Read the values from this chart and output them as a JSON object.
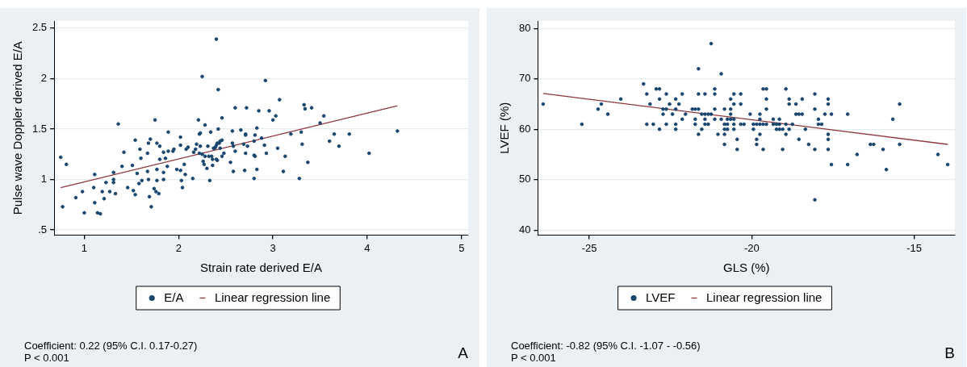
{
  "chart_data": [
    {
      "type": "scatter",
      "xlabel": "Strain rate derived E/A",
      "ylabel": "Pulse wave Doppler derived E/A",
      "xlim": [
        0.68,
        5.07
      ],
      "xticks": [
        1,
        2,
        3,
        4,
        5
      ],
      "ylim": [
        0.45,
        2.57
      ],
      "yticks": [
        {
          "value": 0.5,
          "label": ".5"
        },
        1,
        1.5,
        2,
        2.5
      ],
      "grid": "y",
      "legend": "bottom",
      "marker": "circle",
      "annotations": [
        "Coefficient: 0.22 (95% C.I. 0.17-0.27)",
        "P < 0.001",
        "A"
      ],
      "series": [
        {
          "name": "E/A",
          "type": "scatter",
          "color": "#1a476f",
          "x": [
            0.75,
            0.77,
            0.81,
            0.91,
            0.98,
            1.0,
            1.1,
            1.11,
            1.11,
            1.14,
            1.17,
            1.19,
            1.21,
            1.23,
            1.27,
            1.31,
            1.31,
            1.31,
            1.33,
            1.36,
            1.4,
            1.42,
            1.46,
            1.51,
            1.52,
            1.54,
            1.54,
            1.56,
            1.58,
            1.59,
            1.6,
            1.61,
            1.67,
            1.67,
            1.68,
            1.68,
            1.69,
            1.7,
            1.71,
            1.74,
            1.75,
            1.76,
            1.77,
            1.77,
            1.77,
            1.79,
            1.8,
            1.8,
            1.84,
            1.84,
            1.84,
            1.86,
            1.88,
            1.89,
            1.89,
            1.94,
            1.95,
            1.98,
            2.02,
            2.02,
            2.02,
            2.03,
            2.04,
            2.06,
            2.07,
            2.08,
            2.1,
            2.15,
            2.16,
            2.18,
            2.19,
            2.21,
            2.22,
            2.23,
            2.23,
            2.22,
            2.25,
            2.25,
            2.26,
            2.27,
            2.28,
            2.28,
            2.3,
            2.31,
            2.32,
            2.33,
            2.34,
            2.35,
            2.36,
            2.36,
            2.37,
            2.38,
            2.39,
            2.4,
            2.4,
            2.4,
            2.41,
            2.41,
            2.42,
            2.42,
            2.43,
            2.44,
            2.44,
            2.46,
            2.46,
            2.46,
            2.48,
            2.55,
            2.57,
            2.57,
            2.58,
            2.58,
            2.6,
            2.6,
            2.66,
            2.69,
            2.7,
            2.71,
            2.71,
            2.72,
            2.71,
            2.73,
            2.8,
            2.8,
            2.8,
            2.81,
            2.81,
            2.83,
            2.83,
            2.85,
            2.88,
            2.91,
            2.92,
            2.93,
            2.96,
            3.0,
            3.03,
            3.05,
            3.07,
            3.11,
            3.13,
            3.19,
            3.28,
            3.3,
            3.31,
            3.33,
            3.34,
            3.37,
            3.41,
            3.5,
            3.54,
            3.6,
            3.65,
            3.7,
            3.81,
            4.02,
            4.32
          ],
          "values": [
            1.22,
            0.73,
            1.15,
            0.82,
            0.88,
            0.67,
            0.92,
            1.05,
            0.77,
            0.67,
            0.66,
            0.88,
            0.81,
            0.97,
            0.88,
            1.07,
            1.0,
            0.97,
            0.86,
            1.55,
            1.13,
            1.27,
            0.92,
            1.14,
            0.89,
            1.39,
            0.85,
            1.06,
            0.96,
            1.3,
            1.21,
            0.99,
            1.08,
            1.26,
            1.0,
            1.36,
            0.83,
            1.4,
            0.73,
            0.91,
            1.59,
            0.88,
            1.1,
            1.36,
            0.99,
            0.86,
            1.2,
            1.33,
            1.27,
            1.07,
            1.0,
            1.21,
            1.13,
            1.47,
            1.28,
            1.28,
            1.3,
            1.1,
            1.42,
            1.34,
            1.09,
            0.99,
            0.92,
            1.15,
            1.05,
            1.3,
            1.32,
            1.01,
            1.27,
            1.3,
            1.35,
            1.59,
            1.45,
            1.46,
            1.33,
            1.26,
            2.02,
            1.25,
            1.18,
            1.15,
            1.23,
            1.54,
            1.11,
            1.33,
            1.23,
            0.99,
            1.47,
            1.23,
            1.14,
            1.2,
            1.31,
            1.31,
            1.32,
            2.39,
            1.34,
            1.2,
            1.36,
            1.19,
            1.89,
            1.5,
            1.36,
            1.31,
            1.38,
            1.39,
            1.61,
            1.23,
            1.26,
            1.17,
            1.48,
            1.36,
            1.33,
            1.08,
            1.71,
            1.28,
            1.49,
            1.35,
            1.09,
            1.44,
            1.45,
            1.71,
            1.26,
            1.33,
            1.38,
            1.24,
            1.01,
            1.44,
            1.23,
            1.51,
            1.1,
            1.68,
            1.41,
            1.34,
            1.98,
            1.26,
            1.68,
            1.59,
            1.63,
            1.31,
            1.79,
            1.08,
            1.23,
            1.45,
            1.01,
            1.47,
            1.35,
            1.74,
            1.7,
            1.17,
            1.71,
            1.56,
            1.63,
            1.38,
            1.45,
            1.33,
            1.45,
            1.26,
            1.48
          ]
        },
        {
          "name": "Linear regression line",
          "type": "line",
          "color": "#90353b",
          "marker": "none",
          "x": [
            0.75,
            4.32
          ],
          "values": [
            0.92,
            1.73
          ]
        }
      ]
    },
    {
      "type": "scatter",
      "xlabel": "GLS (%)",
      "ylabel": "LVEF (%)",
      "xlim": [
        -26.58,
        -13.75
      ],
      "xticks": [
        -25,
        -20,
        -15
      ],
      "ylim": [
        39,
        81.5
      ],
      "yticks": [
        40,
        50,
        60,
        70,
        80
      ],
      "grid": "y",
      "legend": "bottom",
      "marker": "circle",
      "annotations": [
        "Coefficient: -0.82 (95% C.I. -1.07 - -0.56)",
        "P < 0.001",
        "B"
      ],
      "series": [
        {
          "name": "LVEF",
          "type": "scatter",
          "color": "#1a476f",
          "x": [
            -26.42,
            -25.23,
            -24.73,
            -24.63,
            -24.43,
            -24.03,
            -23.33,
            -23.23,
            -23.23,
            -23.13,
            -23.03,
            -22.94,
            -22.84,
            -22.84,
            -22.84,
            -22.73,
            -22.73,
            -22.63,
            -22.63,
            -22.63,
            -22.53,
            -22.44,
            -22.34,
            -22.34,
            -22.34,
            -22.34,
            -22.24,
            -22.14,
            -22.14,
            -22.04,
            -21.83,
            -21.74,
            -21.74,
            -21.74,
            -21.64,
            -21.64,
            -21.64,
            -21.64,
            -21.54,
            -21.54,
            -21.44,
            -21.44,
            -21.44,
            -21.44,
            -21.34,
            -21.34,
            -21.25,
            -21.25,
            -21.14,
            -21.14,
            -21.14,
            -21.14,
            -21.04,
            -20.94,
            -20.94,
            -20.84,
            -20.84,
            -20.84,
            -20.84,
            -20.84,
            -20.75,
            -20.75,
            -20.75,
            -20.65,
            -20.65,
            -20.65,
            -20.65,
            -20.55,
            -20.55,
            -20.55,
            -20.55,
            -20.55,
            -20.45,
            -20.45,
            -20.34,
            -20.34,
            -20.34,
            -20.24,
            -20.05,
            -19.95,
            -19.95,
            -19.85,
            -19.85,
            -19.85,
            -19.75,
            -19.75,
            -19.75,
            -19.75,
            -19.65,
            -19.65,
            -19.65,
            -19.55,
            -19.55,
            -19.55,
            -19.55,
            -19.34,
            -19.34,
            -19.24,
            -19.24,
            -19.15,
            -19.15,
            -19.15,
            -19.05,
            -19.05,
            -18.95,
            -18.95,
            -18.95,
            -18.85,
            -18.85,
            -18.85,
            -18.75,
            -18.64,
            -18.64,
            -18.55,
            -18.55,
            -18.45,
            -18.45,
            -18.35,
            -18.25,
            -18.06,
            -18.06,
            -18.06,
            -18.06,
            -17.95,
            -17.95,
            -17.85,
            -17.75,
            -17.65,
            -17.65,
            -17.65,
            -17.65,
            -17.65,
            -17.55,
            -17.55,
            -17.05,
            -17.05,
            -16.76,
            -16.35,
            -16.25,
            -15.96,
            -15.86,
            -15.66,
            -15.45,
            -15.45,
            -14.27,
            -13.97
          ],
          "values": [
            65,
            61,
            64,
            65,
            63,
            66,
            69,
            67,
            61,
            65,
            61,
            68,
            68,
            66,
            60,
            64,
            63,
            67,
            64,
            61,
            65,
            63,
            66,
            64,
            61,
            60,
            65,
            67,
            62,
            63,
            64,
            64,
            62,
            61,
            72,
            67,
            64,
            59,
            63,
            60,
            67,
            63,
            62,
            61,
            63,
            61,
            77,
            63,
            68,
            67,
            64,
            62,
            59,
            71,
            62,
            64,
            61,
            60,
            59,
            57,
            62,
            61,
            60,
            66,
            64,
            63,
            62,
            67,
            65,
            62,
            61,
            60,
            58,
            56,
            67,
            65,
            61,
            61,
            63,
            61,
            60,
            61,
            58,
            57,
            63,
            62,
            61,
            59,
            68,
            61,
            56,
            68,
            66,
            64,
            61,
            62,
            61,
            61,
            60,
            62,
            61,
            60,
            60,
            56,
            68,
            61,
            59,
            66,
            65,
            60,
            61,
            65,
            63,
            63,
            58,
            66,
            63,
            60,
            57,
            67,
            64,
            56,
            46,
            62,
            61,
            61,
            63,
            66,
            65,
            59,
            58,
            56,
            63,
            53,
            63,
            53,
            55,
            57,
            57,
            56,
            52,
            62,
            65,
            57,
            55,
            53
          ]
        },
        {
          "name": "Linear regression line",
          "type": "line",
          "color": "#90353b",
          "marker": "none",
          "x": [
            -26.42,
            -13.97
          ],
          "values": [
            67.1,
            57.0
          ]
        }
      ]
    }
  ]
}
